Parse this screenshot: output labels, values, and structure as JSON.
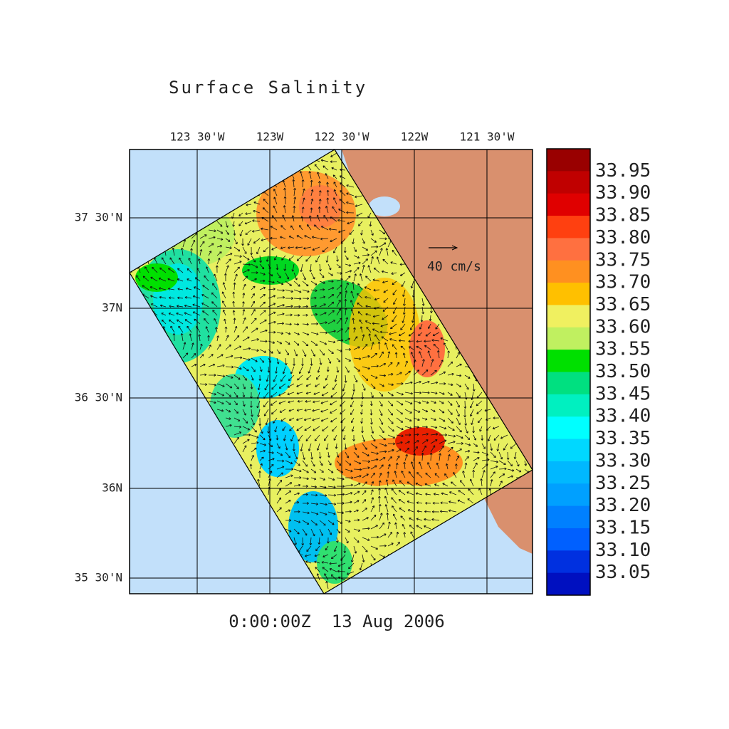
{
  "title": "Surface Salinity",
  "lon_labels": [
    "123 30'W",
    "123W",
    "122 30'W",
    "122W",
    "121 30'W"
  ],
  "lat_labels": [
    "37 30'N",
    "37N",
    "36 30'N",
    "36N",
    "35 30'N"
  ],
  "scale_label": "40 cm/s",
  "timestamp": "0:00:00Z  13 Aug 2006",
  "colorbar": {
    "colors": [
      "#990000",
      "#c00000",
      "#e00000",
      "#ff4010",
      "#ff7040",
      "#ff9020",
      "#ffc000",
      "#f0f060",
      "#c0f060",
      "#00e000",
      "#00e080",
      "#00f0c0",
      "#00ffff",
      "#00d8ff",
      "#00b8ff",
      "#00a0ff",
      "#0080ff",
      "#0060ff",
      "#0030e0",
      "#0010c0"
    ],
    "labels": [
      "33.95",
      "33.90",
      "33.85",
      "33.80",
      "33.75",
      "33.70",
      "33.65",
      "33.60",
      "33.55",
      "33.50",
      "33.45",
      "33.40",
      "33.35",
      "33.30",
      "33.25",
      "33.20",
      "33.15",
      "33.10",
      "33.05"
    ]
  }
}
